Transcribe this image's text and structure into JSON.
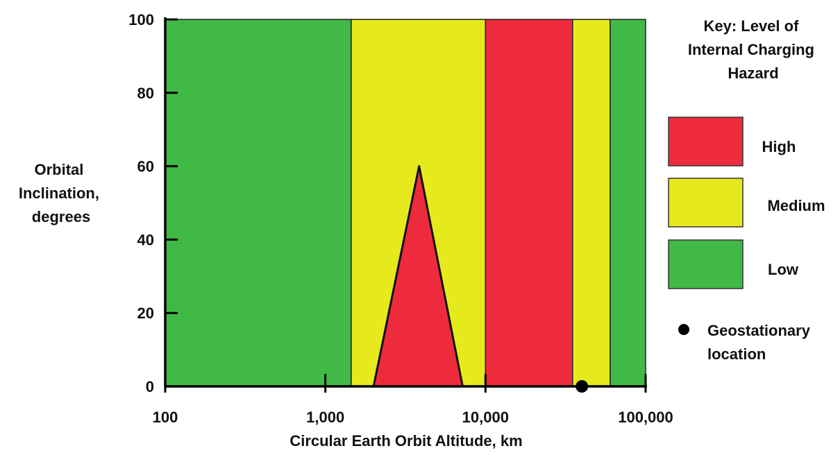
{
  "chart_data": {
    "type": "heatmap",
    "title": "",
    "xlabel": "Circular Earth Orbit Altitude, km",
    "ylabel_lines": [
      "Orbital",
      "Inclination,",
      "degrees"
    ],
    "x_scale": "log",
    "xlim": [
      100,
      100000
    ],
    "ylim": [
      0,
      100
    ],
    "x_ticks": [
      {
        "value": 100,
        "label": "100"
      },
      {
        "value": 1000,
        "label": "1,000"
      },
      {
        "value": 10000,
        "label": "10,000"
      },
      {
        "value": 100000,
        "label": "100,000"
      }
    ],
    "y_ticks": [
      {
        "value": 0,
        "label": "0"
      },
      {
        "value": 20,
        "label": "20"
      },
      {
        "value": 40,
        "label": "40"
      },
      {
        "value": 60,
        "label": "60"
      },
      {
        "value": 80,
        "label": "80"
      },
      {
        "value": 100,
        "label": "100"
      }
    ],
    "grid": false,
    "bands": [
      {
        "level": "Low",
        "x_start": 100,
        "x_end": 1450
      },
      {
        "level": "Medium",
        "x_start": 1450,
        "x_end": 10000
      },
      {
        "level": "High",
        "x_start": 10000,
        "x_end": 35000
      },
      {
        "level": "Medium",
        "x_start": 35000,
        "x_end": 60000
      },
      {
        "level": "Low",
        "x_start": 60000,
        "x_end": 100000
      }
    ],
    "triangle": {
      "level": "High",
      "points": [
        [
          2000,
          0
        ],
        [
          3850,
          60
        ],
        [
          7200,
          0
        ]
      ]
    },
    "geostationary_point": {
      "x": 40000,
      "y": 0
    },
    "legend": {
      "title_lines": [
        "Key: Level of",
        "Internal Charging",
        "Hazard"
      ],
      "position": "right",
      "items": [
        {
          "level": "High",
          "label": "High"
        },
        {
          "level": "Medium",
          "label": "Medium"
        },
        {
          "level": "Low",
          "label": "Low"
        }
      ],
      "marker_label_lines": [
        "Geostationary",
        "location"
      ]
    },
    "colors": {
      "High": "#ee2b3c",
      "Medium": "#e6ea1c",
      "Low": "#41b946"
    }
  }
}
